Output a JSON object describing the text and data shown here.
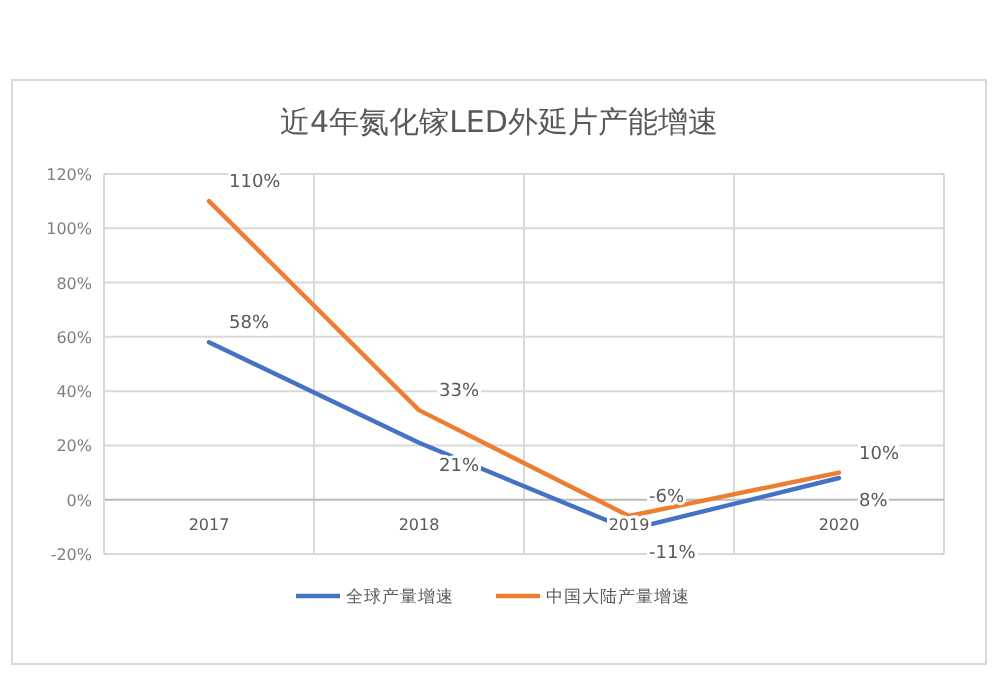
{
  "chart_data": {
    "type": "line",
    "title": "近4年氮化镓LED外延片产能增速",
    "categories": [
      "2017",
      "2018",
      "2019",
      "2020"
    ],
    "series": [
      {
        "name": "全球产量增速",
        "color": "#4472c4",
        "values": [
          58,
          21,
          -11,
          8
        ],
        "value_labels": [
          "58%",
          "21%",
          "-11%",
          "8%"
        ]
      },
      {
        "name": "中国大陆产量增速",
        "color": "#ed7d31",
        "values": [
          110,
          33,
          -6,
          10
        ],
        "value_labels": [
          "110%",
          "33%",
          "-6%",
          "10%"
        ]
      }
    ],
    "ylim": [
      -20,
      120
    ],
    "yticks": [
      {
        "value": -20,
        "label": "-20%"
      },
      {
        "value": 0,
        "label": "0%"
      },
      {
        "value": 20,
        "label": "20%"
      },
      {
        "value": 40,
        "label": "40%"
      },
      {
        "value": 60,
        "label": "60%"
      },
      {
        "value": 80,
        "label": "80%"
      },
      {
        "value": 100,
        "label": "100%"
      },
      {
        "value": 120,
        "label": "120%"
      }
    ],
    "grid": true,
    "legend": "bottom",
    "marker": "none",
    "line_style": "solid"
  }
}
